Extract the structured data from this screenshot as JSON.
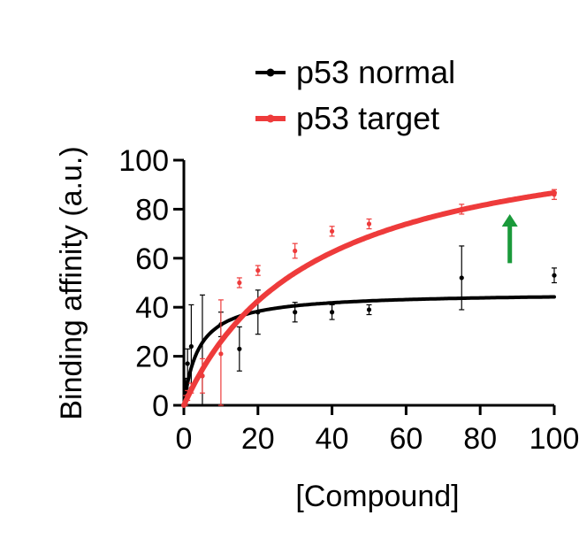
{
  "chart_data": {
    "type": "scatter",
    "title": "",
    "xlabel": "[Compound]",
    "ylabel": "Binding affinity (a.u.)",
    "xlim": [
      0,
      100
    ],
    "ylim": [
      0,
      100
    ],
    "xticks": [
      0,
      20,
      40,
      60,
      80,
      100
    ],
    "yticks": [
      0,
      20,
      40,
      60,
      80,
      100
    ],
    "legend_position": "top",
    "series": [
      {
        "name": "p53 normal",
        "color": "#000000",
        "points": [
          {
            "x": 0.5,
            "y": 5,
            "err": 6
          },
          {
            "x": 1,
            "y": 17,
            "err": 6
          },
          {
            "x": 2,
            "y": 24,
            "err": 17
          },
          {
            "x": 5,
            "y": 12,
            "err": 33
          },
          {
            "x": 10,
            "y": 33,
            "err": 5
          },
          {
            "x": 15,
            "y": 23,
            "err": 9
          },
          {
            "x": 20,
            "y": 38,
            "err": 9
          },
          {
            "x": 30,
            "y": 38,
            "err": 4
          },
          {
            "x": 40,
            "y": 38,
            "err": 3
          },
          {
            "x": 50,
            "y": 39,
            "err": 2
          },
          {
            "x": 75,
            "y": 52,
            "err": 13
          },
          {
            "x": 100,
            "y": 53,
            "err": 3
          }
        ],
        "fit": {
          "model": "one-site binding",
          "bmax": 46,
          "kd": 4
        }
      },
      {
        "name": "p53 target",
        "color": "#ee3b3b",
        "points": [
          {
            "x": 0.5,
            "y": 2,
            "err": 2
          },
          {
            "x": 1,
            "y": 4,
            "err": 2
          },
          {
            "x": 2,
            "y": 7,
            "err": 2
          },
          {
            "x": 5,
            "y": 12,
            "err": 7
          },
          {
            "x": 10,
            "y": 21,
            "err": 22
          },
          {
            "x": 15,
            "y": 50,
            "err": 2
          },
          {
            "x": 20,
            "y": 55,
            "err": 2
          },
          {
            "x": 30,
            "y": 63,
            "err": 3
          },
          {
            "x": 40,
            "y": 71,
            "err": 2
          },
          {
            "x": 50,
            "y": 74,
            "err": 2
          },
          {
            "x": 75,
            "y": 80,
            "err": 2
          },
          {
            "x": 100,
            "y": 86,
            "err": 2
          }
        ],
        "fit": {
          "model": "one-site binding",
          "bmax": 117,
          "kd": 35
        }
      }
    ],
    "annotation": {
      "type": "up-arrow",
      "color": "#1a9a3a",
      "x": 88,
      "y_from": 58,
      "y_to": 78
    }
  }
}
